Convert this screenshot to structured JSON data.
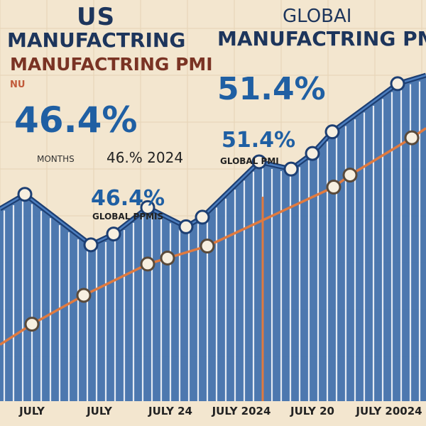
{
  "us_panel": {
    "title_line1": "US",
    "title_line2": "MANUFACTRING",
    "subtitle": "MANUFACTRING PMI",
    "accent_text": "NU",
    "headline_value": "46.4%",
    "months_label": "MONTHS",
    "months_value": "46.% 2024",
    "small_value": "46.4%",
    "small_label": "GLOBAL PPMIS"
  },
  "global_panel": {
    "title_line1": "GLOBAI",
    "title_line2": "MANUFACTRING PMI",
    "headline_value": "51.4%",
    "small_value": "51.4%",
    "small_label": "GLOBAL PMI"
  },
  "chart_data": {
    "type": "line",
    "title": "",
    "xlabel": "",
    "ylabel": "",
    "x_tick_labels": [
      "JULY",
      "JULY",
      "JULY 24",
      "JULY 2024",
      "JULY 20",
      "JULY 20024"
    ],
    "series": [
      {
        "x": [
          0,
          35,
          128,
          160,
          208,
          262,
          285,
          365,
          410,
          440,
          468,
          560,
          600
        ],
        "y": [
          51.0,
          52.2,
          48.0,
          48.9,
          51.1,
          49.5,
          50.3,
          54.9,
          54.3,
          55.6,
          57.4,
          61.4,
          62.1
        ]
      },
      {
        "x": [
          0,
          45,
          118,
          208,
          236,
          292,
          470,
          493,
          580,
          600
        ],
        "y": [
          39.7,
          41.4,
          43.8,
          46.4,
          46.9,
          47.9,
          52.8,
          53.8,
          56.9,
          57.7
        ]
      }
    ],
    "xlim": [
      0,
      600
    ],
    "ylim": [
      35,
      66
    ],
    "marker_line_x": 370,
    "colors": {
      "line_dark": "#1d3f73",
      "area_fill": "#3f6fad",
      "stripe": "#ffffff",
      "line_orange": "#e07a3f",
      "background": "#f3e6cf",
      "grid": "#e6d3b5"
    }
  }
}
